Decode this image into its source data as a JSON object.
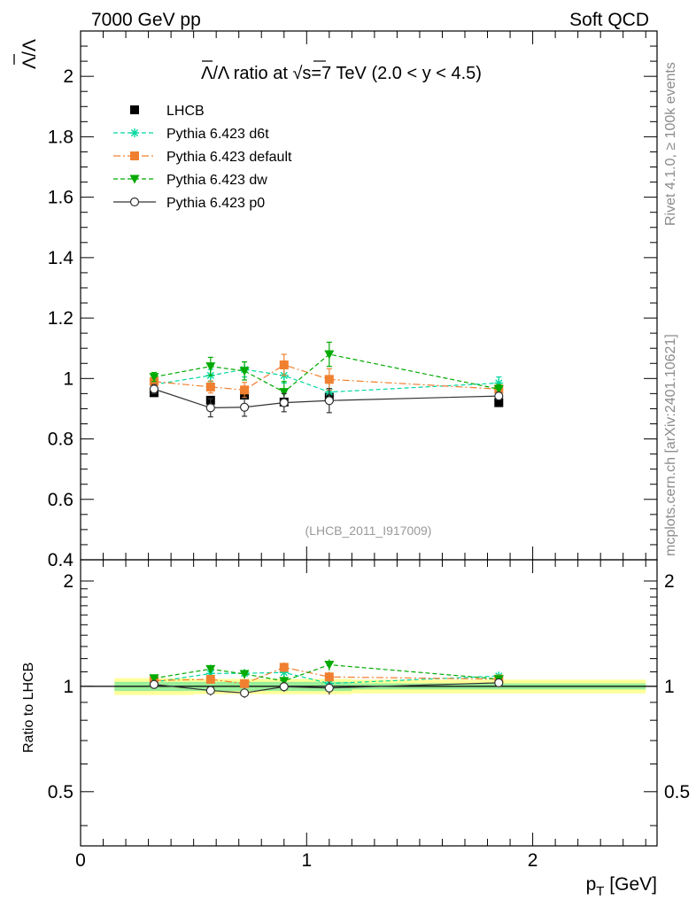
{
  "header": {
    "energy_label": "7000 GeV pp",
    "process_label": "Soft QCD"
  },
  "side_labels": {
    "rivet": "Rivet 4.1.0, ≥ 100k events",
    "mcplots": "mcplots.cern.ch [arXiv:2401.10621]"
  },
  "chart_data": {
    "type": "scatter",
    "title": "Λ̄/Λ ratio at √s=7 TeV (2.0 < y < 4.5)",
    "title_parts": {
      "lead": "Λ/Λ ratio at ",
      "root": "√",
      "tail": "s=7 TeV (2.0 < y < 4.5)"
    },
    "watermark": "(LHCB_2011_I917009)",
    "xlabel": "p_T [GeV]",
    "xlabel_parts": {
      "main": "p",
      "sub": "T",
      "unit": " [GeV]"
    },
    "ylabel": "Λ̄/Λ",
    "ylabel_char": "Λ/Λ",
    "xlim": [
      0,
      2.55
    ],
    "ylim": [
      0.4,
      2.15
    ],
    "x_ticks": [
      {
        "value": 0,
        "label": "0"
      },
      {
        "value": 1,
        "label": "1"
      },
      {
        "value": 2,
        "label": "2"
      }
    ],
    "y_ticks": [
      {
        "value": 0.4,
        "label": "0.4"
      },
      {
        "value": 0.6,
        "label": "0.6"
      },
      {
        "value": 0.8,
        "label": "0.8"
      },
      {
        "value": 1.0,
        "label": "1"
      },
      {
        "value": 1.2,
        "label": "1.2"
      },
      {
        "value": 1.4,
        "label": "1.4"
      },
      {
        "value": 1.6,
        "label": "1.6"
      },
      {
        "value": 1.8,
        "label": "1.8"
      },
      {
        "value": 2.0,
        "label": "2"
      }
    ],
    "legend_position": "top-left",
    "series": [
      {
        "name": "LHCB",
        "color": "#000000",
        "marker": "square",
        "line": "none",
        "x": [
          0.325,
          0.575,
          0.725,
          0.9,
          1.1,
          1.85
        ],
        "y": [
          0.953,
          0.928,
          0.945,
          0.922,
          0.937,
          0.92
        ],
        "yerr": [
          0.012,
          0.012,
          0.012,
          0.012,
          0.012,
          0.012
        ],
        "xbin": [
          [
            0.15,
            0.5
          ],
          [
            0.5,
            0.65
          ],
          [
            0.65,
            0.8
          ],
          [
            0.8,
            1.0
          ],
          [
            1.0,
            1.2
          ],
          [
            1.2,
            2.5
          ]
        ]
      },
      {
        "name": "Pythia 6.423 d6t",
        "color": "#00d8a0",
        "marker": "star",
        "line": "dashed",
        "x": [
          0.325,
          0.575,
          0.725,
          0.9,
          1.1,
          1.85
        ],
        "y": [
          0.98,
          1.01,
          1.03,
          1.01,
          0.955,
          0.985
        ],
        "yerr": [
          0.015,
          0.02,
          0.025,
          0.025,
          0.03,
          0.02
        ]
      },
      {
        "name": "Pythia 6.423 default",
        "color": "#f08030",
        "marker": "square",
        "line": "dashdot",
        "x": [
          0.325,
          0.575,
          0.725,
          0.9,
          1.1,
          1.85
        ],
        "y": [
          0.99,
          0.972,
          0.962,
          1.045,
          0.997,
          0.965
        ],
        "yerr": [
          0.015,
          0.02,
          0.025,
          0.035,
          0.035,
          0.015
        ]
      },
      {
        "name": "Pythia 6.423 dw",
        "color": "#00aa00",
        "marker": "triangle-down",
        "line": "dashed",
        "x": [
          0.325,
          0.575,
          0.725,
          0.9,
          1.1,
          1.85
        ],
        "y": [
          1.005,
          1.04,
          1.025,
          0.955,
          1.08,
          0.965
        ],
        "yerr": [
          0.015,
          0.03,
          0.03,
          0.035,
          0.04,
          0.015
        ]
      },
      {
        "name": "Pythia 6.423 p0",
        "color": "#333333",
        "marker": "circle-open",
        "line": "solid",
        "x": [
          0.325,
          0.575,
          0.725,
          0.9,
          1.1,
          1.85
        ],
        "y": [
          0.965,
          0.903,
          0.905,
          0.92,
          0.927,
          0.942
        ],
        "yerr": [
          0.015,
          0.03,
          0.03,
          0.03,
          0.04,
          0.012
        ]
      }
    ],
    "ratio_panel": {
      "ylabel": "Ratio to LHCB",
      "ylim": [
        0.35,
        2.3
      ],
      "y_ticks": [
        {
          "value": 0.5,
          "label": "0.5"
        },
        {
          "value": 1,
          "label": "1"
        },
        {
          "value": 2,
          "label": "2"
        }
      ],
      "band_inner": [
        [
          0.15,
          0.5,
          0.03
        ],
        [
          0.5,
          1.2,
          0.03
        ],
        [
          1.2,
          2.5,
          0.02
        ]
      ],
      "band_outer": [
        [
          0.15,
          0.5,
          0.055
        ],
        [
          0.5,
          1.2,
          0.05
        ],
        [
          1.2,
          2.5,
          0.045
        ]
      ]
    }
  }
}
